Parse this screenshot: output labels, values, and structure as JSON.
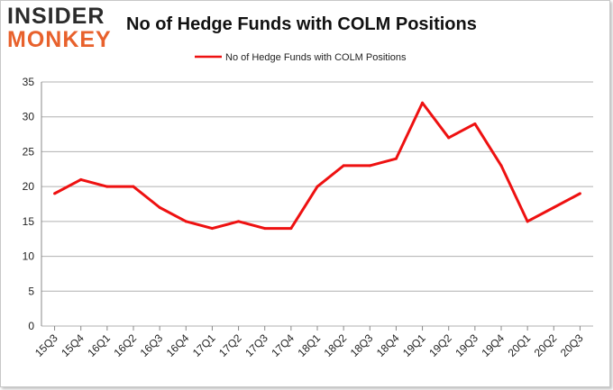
{
  "brand": {
    "line1": "INSIDER",
    "line2": "MONKEY",
    "accent": "#e8612c"
  },
  "chart_data": {
    "type": "line",
    "title": "No of Hedge Funds with COLM Positions",
    "xlabel": "",
    "ylabel": "",
    "ylim": [
      0,
      35
    ],
    "yticks": [
      0,
      5,
      10,
      15,
      20,
      25,
      30,
      35
    ],
    "grid": true,
    "legend_position": "top-center",
    "categories": [
      "15Q3",
      "15Q4",
      "16Q1",
      "16Q2",
      "16Q3",
      "16Q4",
      "17Q1",
      "17Q2",
      "17Q3",
      "17Q4",
      "18Q1",
      "18Q2",
      "18Q3",
      "18Q4",
      "19Q1",
      "19Q2",
      "19Q3",
      "19Q4",
      "20Q1",
      "20Q2",
      "20Q3"
    ],
    "series": [
      {
        "name": "No of Hedge Funds with COLM Positions",
        "color": "#ee1111",
        "values": [
          19,
          21,
          20,
          20,
          17,
          15,
          14,
          15,
          14,
          14,
          20,
          23,
          23,
          24,
          32,
          27,
          29,
          23,
          15,
          17,
          19
        ]
      }
    ]
  }
}
